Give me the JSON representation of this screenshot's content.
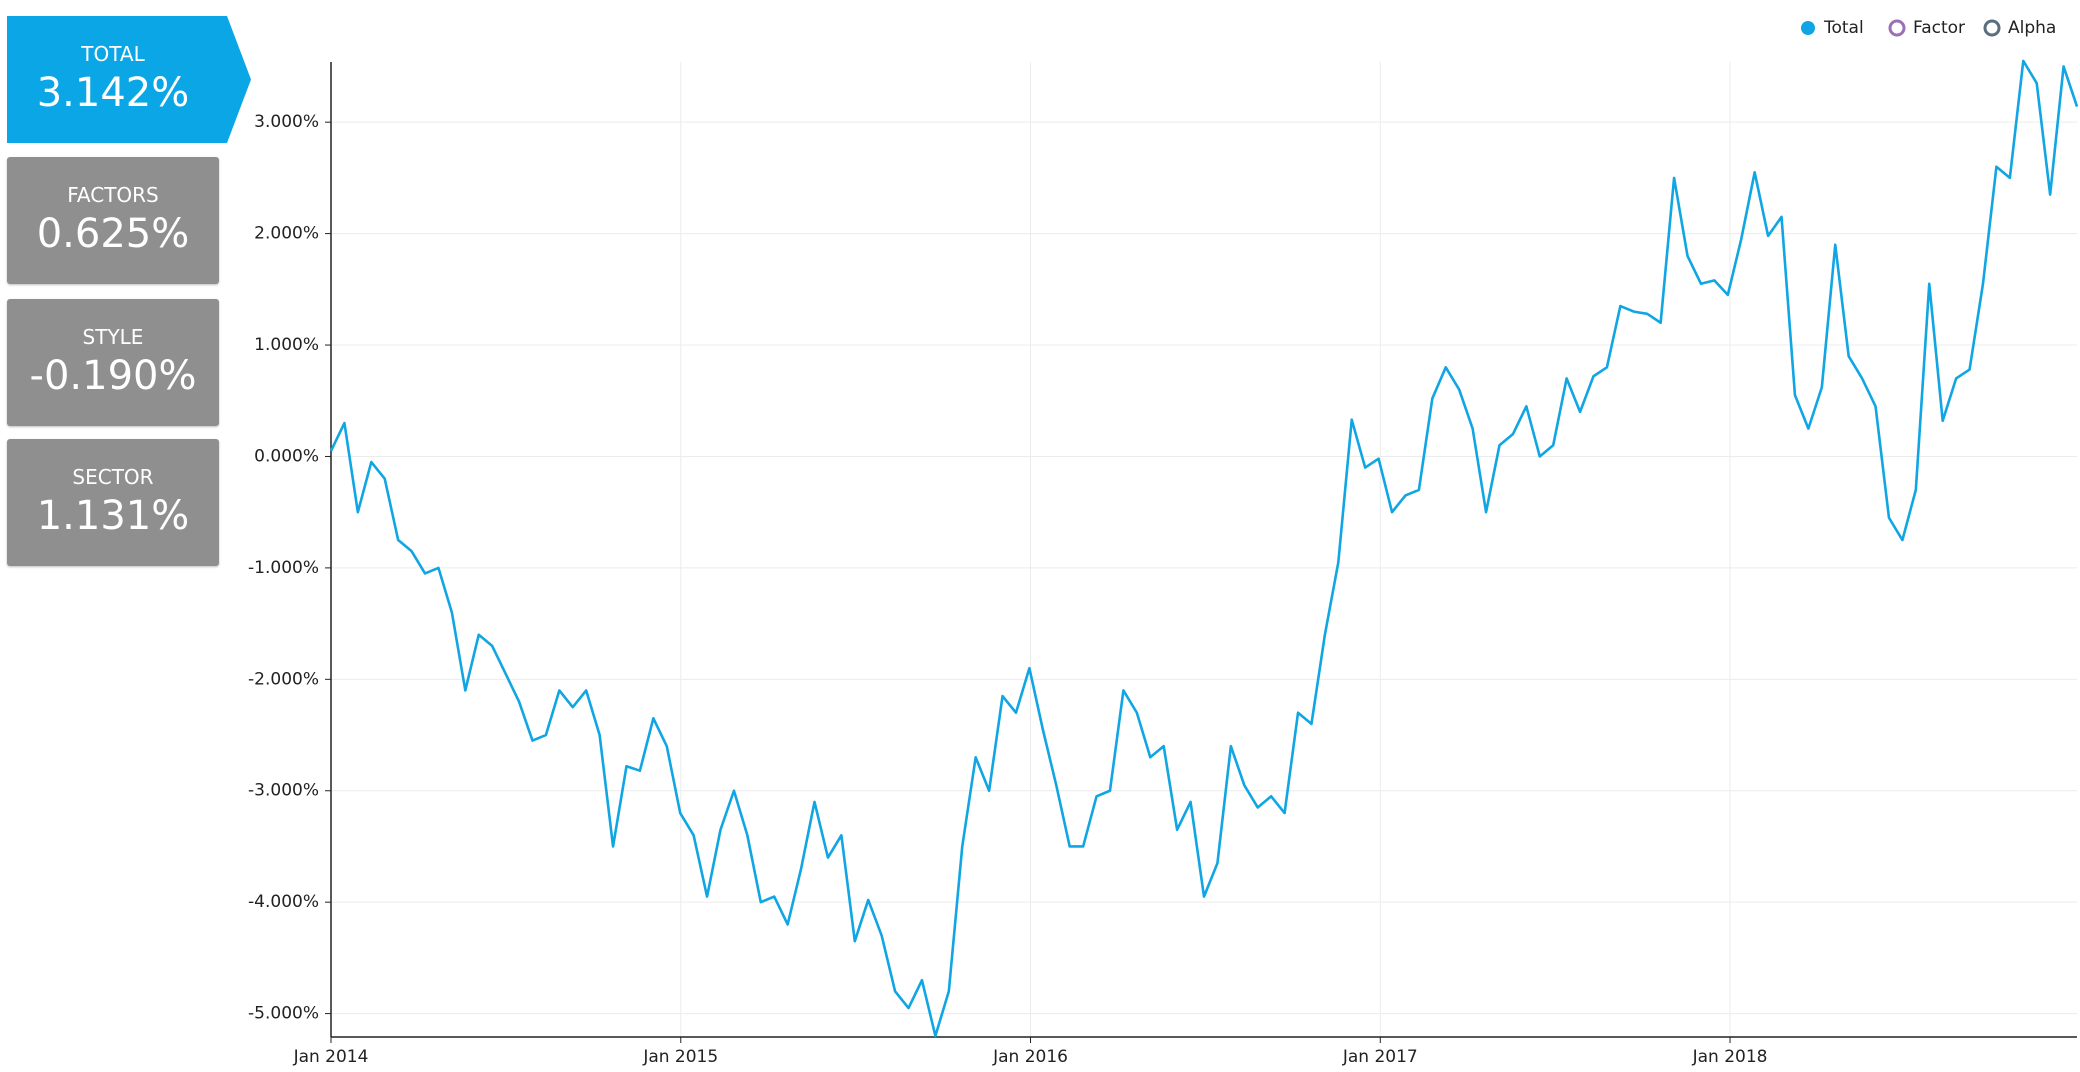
{
  "cards": [
    {
      "label": "TOTAL",
      "value": "3.142%"
    },
    {
      "label": "FACTORS",
      "value": "0.625%"
    },
    {
      "label": "STYLE",
      "value": "-0.190%"
    },
    {
      "label": "SECTOR",
      "value": "1.131%"
    }
  ],
  "chart_data": {
    "type": "line",
    "grid": true,
    "legend": "top-right",
    "xlim": [
      2014,
      2018.992
    ],
    "ylim": [
      -5.21,
      3.54
    ],
    "xticks": [
      {
        "value": 2014,
        "label": "Jan 2014"
      },
      {
        "value": 2015,
        "label": "Jan 2015"
      },
      {
        "value": 2016,
        "label": "Jan 2016"
      },
      {
        "value": 2017,
        "label": "Jan 2017"
      },
      {
        "value": 2018,
        "label": "Jan 2018"
      }
    ],
    "yticks": [
      {
        "value": 3,
        "label": "3.000%"
      },
      {
        "value": 2,
        "label": "2.000%"
      },
      {
        "value": 1,
        "label": "1.000%"
      },
      {
        "value": 0,
        "label": "0.000%"
      },
      {
        "value": -1,
        "label": "-1.000%"
      },
      {
        "value": -2,
        "label": "-2.000%"
      },
      {
        "value": -3,
        "label": "-3.000%"
      },
      {
        "value": -4,
        "label": "-4.000%"
      },
      {
        "value": -5,
        "label": "-5.000%"
      }
    ],
    "x": [
      2014,
      2014.0384,
      2014.0768,
      2014.1152,
      2014.1536,
      2014.192,
      2014.2304,
      2014.2688,
      2014.3072,
      2014.3456,
      2014.384,
      2014.4224,
      2014.4608,
      2014.4992,
      2014.5376,
      2014.576,
      2014.6144,
      2014.6528,
      2014.6912,
      2014.7296,
      2014.768,
      2014.8064,
      2014.8448,
      2014.8832,
      2014.9216,
      2014.96,
      2014.9984,
      2015.0368,
      2015.0752,
      2015.1136,
      2015.152,
      2015.1904,
      2015.2288,
      2015.2672,
      2015.3056,
      2015.344,
      2015.3824,
      2015.4208,
      2015.4592,
      2015.4976,
      2015.536,
      2015.5744,
      2015.6128,
      2015.6512,
      2015.6896,
      2015.728,
      2015.7664,
      2015.8048,
      2015.8432,
      2015.8816,
      2015.92,
      2015.9584,
      2015.9968,
      2016.0352,
      2016.0736,
      2016.112,
      2016.1504,
      2016.1888,
      2016.2272,
      2016.2656,
      2016.304,
      2016.3424,
      2016.3808,
      2016.4192,
      2016.4576,
      2016.496,
      2016.5344,
      2016.5728,
      2016.6112,
      2016.6496,
      2016.688,
      2016.7264,
      2016.7648,
      2016.8032,
      2016.8416,
      2016.88,
      2016.9184,
      2016.9568,
      2016.9952,
      2017.0336,
      2017.072,
      2017.1104,
      2017.1488,
      2017.1872,
      2017.2256,
      2017.264,
      2017.3024,
      2017.3408,
      2017.3792,
      2017.4176,
      2017.456,
      2017.4944,
      2017.5328,
      2017.5712,
      2017.6096,
      2017.648,
      2017.6864,
      2017.7248,
      2017.7632,
      2017.8016,
      2017.84,
      2017.8784,
      2017.9168,
      2017.9552,
      2017.9936,
      2018.032,
      2018.0704,
      2018.1088,
      2018.1472,
      2018.1856,
      2018.224,
      2018.2624,
      2018.3008,
      2018.3392,
      2018.3776,
      2018.416,
      2018.4544,
      2018.4928,
      2018.5312,
      2018.5696,
      2018.608,
      2018.6464,
      2018.6848,
      2018.7232,
      2018.7616,
      2018.8,
      2018.8384,
      2018.8768,
      2018.9152,
      2018.9536,
      2018.992
    ],
    "series": [
      {
        "name": "Total",
        "color": "#10a5e3",
        "visible": true,
        "values": [
          0.05,
          0.3,
          -0.5,
          -0.05,
          -0.2,
          -0.75,
          -0.85,
          -1.05,
          -1.0,
          -1.4,
          -2.1,
          -1.6,
          -1.7,
          -1.95,
          -2.2,
          -2.55,
          -2.5,
          -2.1,
          -2.25,
          -2.1,
          -2.5,
          -3.5,
          -2.78,
          -2.82,
          -2.35,
          -2.6,
          -3.2,
          -3.4,
          -3.95,
          -3.35,
          -3.0,
          -3.4,
          -4.0,
          -3.95,
          -4.2,
          -3.7,
          -3.1,
          -3.6,
          -3.4,
          -4.35,
          -3.98,
          -4.3,
          -4.8,
          -4.95,
          -4.7,
          -5.2,
          -4.8,
          -3.5,
          -2.7,
          -3.0,
          -2.15,
          -2.3,
          -1.9,
          -2.45,
          -2.95,
          -3.5,
          -3.5,
          -3.05,
          -3.0,
          -2.1,
          -2.3,
          -2.7,
          -2.6,
          -3.35,
          -3.1,
          -3.95,
          -3.65,
          -2.6,
          -2.95,
          -3.15,
          -3.05,
          -3.2,
          -2.3,
          -2.4,
          -1.6,
          -0.95,
          0.33,
          -0.1,
          -0.02,
          -0.5,
          -0.35,
          -0.3,
          0.52,
          0.8,
          0.6,
          0.25,
          -0.5,
          0.1,
          0.2,
          0.45,
          0.0,
          0.1,
          0.7,
          0.4,
          0.72,
          0.8,
          1.35,
          1.3,
          1.28,
          1.2,
          2.5,
          1.8,
          1.55,
          1.58,
          1.45,
          1.95,
          2.55,
          1.98,
          2.15,
          0.55,
          0.25,
          0.62,
          1.9,
          0.9,
          0.7,
          0.45,
          -0.55,
          -0.75,
          -0.3,
          1.55,
          0.32,
          0.7,
          0.78,
          1.55,
          2.6,
          2.5,
          3.55,
          3.35,
          2.35,
          3.5,
          3.14
        ]
      },
      {
        "name": "Factor",
        "color": "#9b6fb8",
        "visible": false
      },
      {
        "name": "Alpha",
        "color": "#5a6e80",
        "visible": false
      }
    ]
  }
}
